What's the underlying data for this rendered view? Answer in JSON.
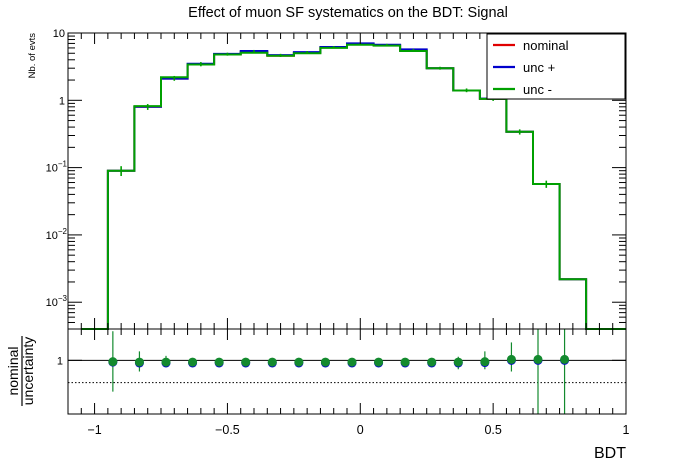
{
  "chart_data": {
    "type": "line",
    "title": "Effect of muon SF systematics on the BDT: Signal",
    "xlabel": "BDT",
    "ylabel": "Nb. of evts",
    "xlim": [
      -1.1,
      1.0
    ],
    "ylim": [
      0.0004,
      10
    ],
    "yscale": "log",
    "legend_position": "top-right",
    "x_ticks": [
      "−1",
      "−0.5",
      "0",
      "0.5",
      "1"
    ],
    "y_ticks": [
      {
        "value": 10,
        "base": "10",
        "exp": ""
      },
      {
        "value": 1,
        "base": "1",
        "exp": ""
      },
      {
        "value": 0.1,
        "base": "10",
        "exp": "−1"
      },
      {
        "value": 0.01,
        "base": "10",
        "exp": "−2"
      },
      {
        "value": 0.001,
        "base": "10",
        "exp": "−3"
      }
    ],
    "bin_edges": [
      -1.05,
      -0.95,
      -0.85,
      -0.75,
      -0.65,
      -0.55,
      -0.45,
      -0.35,
      -0.25,
      -0.15,
      -0.05,
      0.05,
      0.15,
      0.25,
      0.35,
      0.45,
      0.55,
      0.65,
      0.75,
      0.85,
      0.95,
      1.0
    ],
    "series": [
      {
        "name": "nominal",
        "color": "#e00000",
        "values": [
          0.0003,
          0.09,
          0.8,
          2.1,
          3.4,
          4.8,
          5.2,
          4.6,
          5.1,
          6.1,
          6.8,
          6.6,
          5.5,
          3.0,
          1.4,
          1.05,
          0.34,
          0.057,
          0.0022,
          0.0004,
          0.0004
        ]
      },
      {
        "name": "unc +",
        "color": "#0000cc",
        "values": [
          0.0003,
          0.09,
          0.8,
          2.1,
          3.5,
          4.9,
          5.4,
          4.7,
          5.2,
          6.2,
          7.0,
          6.7,
          5.7,
          3.0,
          1.4,
          1.06,
          0.34,
          0.057,
          0.0022,
          0.0004,
          0.0004
        ]
      },
      {
        "name": "unc -",
        "color": "#00a000",
        "values": [
          0.0003,
          0.09,
          0.82,
          2.2,
          3.4,
          4.8,
          5.1,
          4.6,
          5.0,
          6.0,
          6.7,
          6.5,
          5.4,
          3.0,
          1.4,
          1.05,
          0.34,
          0.057,
          0.0022,
          0.0004,
          0.0004
        ]
      }
    ],
    "error_bars": {
      "x": [
        -0.9,
        -0.8,
        -0.7,
        -0.6,
        -0.5,
        -0.4,
        -0.3,
        -0.2,
        -0.1,
        0.0,
        0.1,
        0.2,
        0.3,
        0.4,
        0.5,
        0.6,
        0.7
      ],
      "low": [
        0.075,
        0.72,
        1.95,
        3.2,
        4.6,
        5.0,
        4.4,
        4.9,
        5.9,
        6.6,
        6.4,
        5.3,
        2.85,
        1.32,
        0.98,
        0.31,
        0.05
      ],
      "high": [
        0.105,
        0.88,
        2.3,
        3.7,
        5.1,
        5.6,
        4.9,
        5.4,
        6.4,
        7.1,
        6.9,
        5.8,
        3.15,
        1.5,
        1.12,
        0.37,
        0.064
      ]
    },
    "ratio": {
      "ylabel_top": "nominal",
      "ylabel_bottom": "uncertainty",
      "ylim": [
        0.88,
        1.07
      ],
      "y_ticks": [
        {
          "value": 1,
          "label": "1"
        }
      ],
      "reference_line": 1,
      "dotted_line": 0.95,
      "x": [
        -0.95,
        -0.85,
        -0.75,
        -0.65,
        -0.55,
        -0.45,
        -0.35,
        -0.25,
        -0.15,
        -0.05,
        0.05,
        0.15,
        0.25,
        0.35,
        0.45,
        0.55,
        0.65,
        0.75
      ],
      "series": [
        {
          "name": "unc +",
          "color": "#0000cc",
          "values": [
            0.996,
            0.994,
            0.994,
            0.994,
            0.994,
            0.994,
            0.994,
            0.994,
            0.994,
            0.994,
            0.994,
            0.994,
            0.994,
            0.994,
            0.995,
            1.0,
            1.0,
            1.0
          ]
        },
        {
          "name": "unc -",
          "color": "#138a2e",
          "values": [
            0.997,
            0.996,
            0.996,
            0.996,
            0.996,
            0.996,
            0.996,
            0.996,
            0.996,
            0.996,
            0.996,
            0.996,
            0.996,
            0.996,
            0.997,
            1.002,
            1.002,
            1.002
          ]
        }
      ],
      "err_low": [
        0.93,
        0.975,
        0.985,
        0.99,
        0.99,
        0.99,
        0.99,
        0.99,
        0.99,
        0.99,
        0.99,
        0.99,
        0.985,
        0.98,
        0.98,
        0.975,
        0.88,
        0.88
      ],
      "err_high": [
        1.065,
        1.02,
        1.01,
        1.005,
        1.003,
        1.003,
        1.003,
        1.003,
        1.003,
        1.003,
        1.003,
        1.003,
        1.005,
        1.008,
        1.02,
        1.04,
        1.07,
        1.07
      ]
    }
  }
}
